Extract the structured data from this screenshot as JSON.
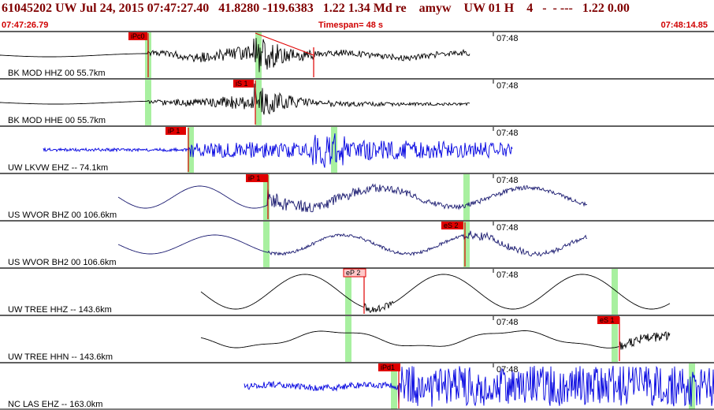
{
  "header": {
    "title": "61045202 UW Jul 24, 2015 07:47:27.40   41.8280 -119.6383   1.22 1.34 Md re    amyw    UW 01 H    4   -  - ---   1.22 0.00",
    "start_time": "07:47:26.79",
    "timespan": "Timespan=  48 s",
    "end_time": "07:48:14.85"
  },
  "colors": {
    "header_text": "#800000",
    "subheader_text": "#d00000",
    "pick_box": "#e00000",
    "pick_box_light": "#ffc8c8",
    "window_shade": "#a8f0a0",
    "trace_black": "#000000",
    "trace_blue": "#0000e0",
    "trace_navy": "#1a1a70"
  },
  "time_label": "07:48",
  "channels": [
    {
      "label": "BK MOD HHZ 00 55.7km",
      "picks": [
        {
          "text": "iPc0"
        }
      ]
    },
    {
      "label": "BK MOD HHE 00 55.7km",
      "picks": [
        {
          "text": "iS 1"
        }
      ]
    },
    {
      "label": "UW LKVW EHZ -- 74.1km",
      "picks": [
        {
          "text": "iP 1"
        }
      ]
    },
    {
      "label": "US WVOR BHZ 00 106.6km",
      "picks": [
        {
          "text": "iP 1"
        }
      ]
    },
    {
      "label": "US WVOR BH2 00 106.6km",
      "picks": [
        {
          "text": "eS 2"
        }
      ]
    },
    {
      "label": "UW TREE HHZ -- 143.6km",
      "picks": [
        {
          "text": "eP 2"
        }
      ]
    },
    {
      "label": "UW TREE HHN -- 143.6km",
      "picks": [
        {
          "text": "eS 1"
        }
      ]
    },
    {
      "label": "NC LAS EHZ -- 163.0km",
      "picks": [
        {
          "text": "iPd1"
        }
      ]
    }
  ]
}
